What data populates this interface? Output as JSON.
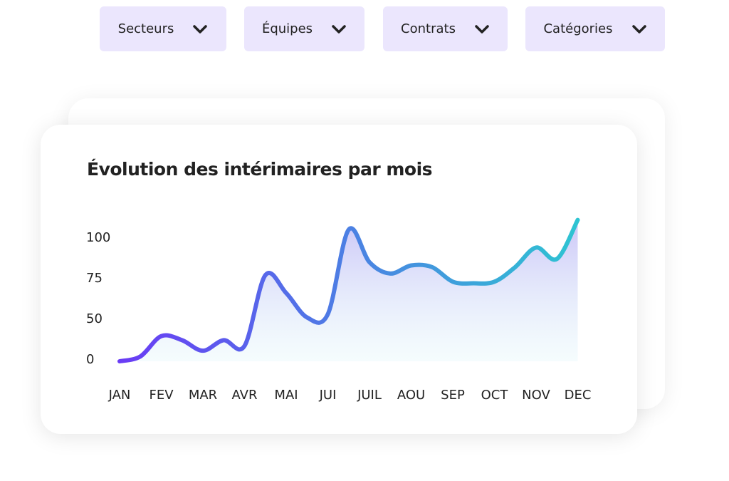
{
  "filters": [
    "Secteurs",
    "Équipes",
    "Contrats",
    "Catégories"
  ],
  "chart_data": {
    "type": "line",
    "title": "Évolution des intérimaires par mois",
    "categories": [
      "JAN",
      null,
      "FEV",
      null,
      "MAR",
      null,
      "AVR",
      null,
      "MAI",
      null,
      "JUI",
      null,
      "JUIL",
      null,
      "AOU",
      null,
      "SEP",
      null,
      "OCT",
      null,
      "NOV",
      null,
      "DEC"
    ],
    "series": [
      {
        "name": null,
        "color": "#6a3cf5",
        "values": [
          0,
          6,
          31,
          26,
          13,
          26,
          19,
          78,
          67,
          52,
          54,
          106,
          86,
          79,
          84,
          83,
          74,
          73,
          74,
          83,
          95,
          88,
          112
        ]
      }
    ],
    "ylim": [
      0,
      112
    ],
    "yticks": [
      0,
      50,
      75,
      100
    ],
    "end_color": "#2ec4d2"
  }
}
